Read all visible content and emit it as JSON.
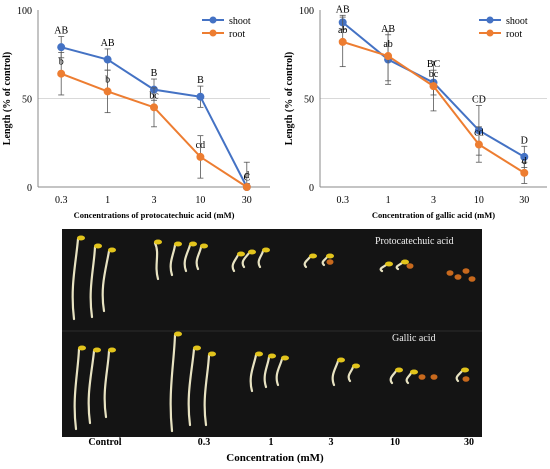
{
  "chart_data": [
    {
      "type": "line",
      "title": "",
      "ylabel": "Length (% of control)",
      "xlabel": "Concentrations of protocatechuic acid (mM)",
      "categories": [
        "0.3",
        "1",
        "3",
        "10",
        "30"
      ],
      "ylim": [
        0,
        100
      ],
      "yticks": [
        "0",
        "50",
        "100"
      ],
      "legend": "top-right",
      "series": [
        {
          "name": "shoot",
          "color": "#4472c4",
          "values": [
            79,
            72,
            55,
            51,
            0
          ],
          "errors": [
            6,
            6,
            6,
            6,
            2
          ],
          "labels": [
            "AB",
            "AB",
            "B",
            "B",
            "C"
          ]
        },
        {
          "name": "root",
          "color": "#ed7d31",
          "values": [
            64,
            54,
            45,
            17,
            0
          ],
          "errors": [
            12,
            12,
            11,
            12,
            14
          ],
          "labels": [
            "b",
            "b",
            "bc",
            "cd",
            "d"
          ]
        }
      ]
    },
    {
      "type": "line",
      "title": "",
      "ylabel": "Length (% of control)",
      "xlabel": "Concentration of gallic acid (mM)",
      "categories": [
        "0.3",
        "1",
        "3",
        "10",
        "30"
      ],
      "ylim": [
        0,
        100
      ],
      "yticks": [
        "0",
        "50",
        "100"
      ],
      "legend": "top-right",
      "series": [
        {
          "name": "shoot",
          "color": "#4472c4",
          "values": [
            93,
            72,
            59,
            32,
            17
          ],
          "errors": [
            4,
            14,
            7,
            14,
            6
          ],
          "labels": [
            "AB",
            "AB",
            "BC",
            "CD",
            "D"
          ]
        },
        {
          "name": "root",
          "color": "#ed7d31",
          "values": [
            82,
            74,
            57,
            24,
            8
          ],
          "errors": [
            14,
            14,
            14,
            10,
            6
          ],
          "labels": [
            "ab",
            "ab",
            "bc",
            "cd",
            "d"
          ]
        }
      ]
    }
  ],
  "photo": {
    "row_labels": [
      "Protocatechuic acid",
      "Gallic acid"
    ],
    "x_labels": [
      "Control",
      "0.3",
      "1",
      "3",
      "10",
      "30"
    ],
    "x_title": "Concentration (mM)"
  }
}
